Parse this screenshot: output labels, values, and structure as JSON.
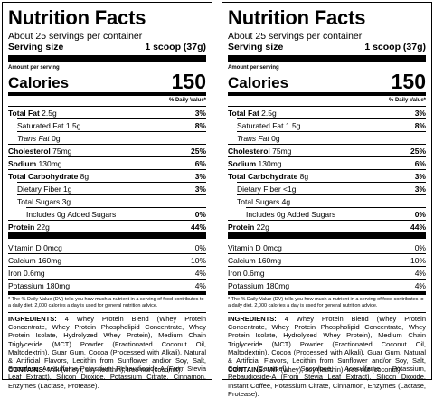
{
  "labels": [
    {
      "title": "Nutrition Facts",
      "servings": "About 25 servings per container",
      "serving_size_label": "Serving size",
      "serving_size_value": "1 scoop (37g)",
      "amount_per_serving": "Amount per serving",
      "calories_label": "Calories",
      "calories_value": "150",
      "dv_header": "% Daily Value*",
      "nutrients": [
        {
          "name": "Total Fat",
          "amount": "2.5g",
          "dv": "3%",
          "bold": true,
          "indent": 0
        },
        {
          "name": "Saturated Fat",
          "amount": "1.5g",
          "dv": "8%",
          "bold": false,
          "indent": 1
        },
        {
          "name": "Trans Fat",
          "amount": "0g",
          "dv": "",
          "bold": false,
          "indent": 1,
          "italic": true
        },
        {
          "name": "Cholesterol",
          "amount": "75mg",
          "dv": "25%",
          "bold": true,
          "indent": 0
        },
        {
          "name": "Sodium",
          "amount": "130mg",
          "dv": "6%",
          "bold": true,
          "indent": 0
        },
        {
          "name": "Total Carbohydrate",
          "amount": "8g",
          "dv": "3%",
          "bold": true,
          "indent": 0
        },
        {
          "name": "Dietary Fiber",
          "amount": "1g",
          "dv": "3%",
          "bold": false,
          "indent": 1
        },
        {
          "name": "Total Sugars",
          "amount": "3g",
          "dv": "",
          "bold": false,
          "indent": 1
        },
        {
          "name": "Includes 0g Added Sugars",
          "amount": "",
          "dv": "0%",
          "bold": false,
          "indent": 2
        },
        {
          "name": "Protein",
          "amount": "22g",
          "dv": "44%",
          "bold": true,
          "indent": 0
        }
      ],
      "vitamins": [
        {
          "name": "Vitamin D",
          "amount": "0mcg",
          "dv": "0%"
        },
        {
          "name": "Calcium",
          "amount": "160mg",
          "dv": "10%"
        },
        {
          "name": "Iron",
          "amount": "0.6mg",
          "dv": "4%"
        },
        {
          "name": "Potassium",
          "amount": "180mg",
          "dv": "4%"
        }
      ],
      "footnote": "* The % Daily Value (DV) tells you how much a nutrient in a serving of food contributes to a daily diet. 2,000 calories a day is used for general nutrition advice.",
      "ingredients_label": "INGREDIENTS:",
      "ingredients_text": "4 Whey Protein Blend (Whey Protein Concentrate, Whey Protein Phospholipid Concentrate, Whey Protein Isolate, Hydrolyzed Whey Protein), Medium Chain Triglyceride (MCT) Powder (Fractionated Coconut Oil, Maltodextrin), Guar Gum, Cocoa (Processed with Alkali), Natural & Artificial Flavors, Lecithin from Sunflower and/or Soy, Salt, Sucralose, Acesulfame Potassium, Rebaudioside-A (From Stevia Leaf Extract), Silicon Dioxide, Potassium Citrate, Cinnamon, Enzymes (Lactase, Protease).",
      "contains_label": "CONTAINS:",
      "contains_text": "Milk (whey), soy (lecithin), tree nut (coconut)."
    },
    {
      "title": "Nutrition Facts",
      "servings": "About 25 servings per container",
      "serving_size_label": "Serving size",
      "serving_size_value": "1 scoop (37g)",
      "amount_per_serving": "Amount per serving",
      "calories_label": "Calories",
      "calories_value": "150",
      "dv_header": "% Daily Value*",
      "nutrients": [
        {
          "name": "Total Fat",
          "amount": "2.5g",
          "dv": "3%",
          "bold": true,
          "indent": 0
        },
        {
          "name": "Saturated Fat",
          "amount": "1.5g",
          "dv": "8%",
          "bold": false,
          "indent": 1
        },
        {
          "name": "Trans Fat",
          "amount": "0g",
          "dv": "",
          "bold": false,
          "indent": 1,
          "italic": true
        },
        {
          "name": "Cholesterol",
          "amount": "75mg",
          "dv": "25%",
          "bold": true,
          "indent": 0
        },
        {
          "name": "Sodium",
          "amount": "130mg",
          "dv": "6%",
          "bold": true,
          "indent": 0
        },
        {
          "name": "Total Carbohydrate",
          "amount": "8g",
          "dv": "3%",
          "bold": true,
          "indent": 0
        },
        {
          "name": "Dietary Fiber",
          "amount": "<1g",
          "dv": "3%",
          "bold": false,
          "indent": 1
        },
        {
          "name": "Total Sugars",
          "amount": "4g",
          "dv": "",
          "bold": false,
          "indent": 1
        },
        {
          "name": "Includes 0g Added Sugars",
          "amount": "",
          "dv": "0%",
          "bold": false,
          "indent": 2
        },
        {
          "name": "Protein",
          "amount": "22g",
          "dv": "44%",
          "bold": true,
          "indent": 0
        }
      ],
      "vitamins": [
        {
          "name": "Vitamin D",
          "amount": "0mcg",
          "dv": "0%"
        },
        {
          "name": "Calcium",
          "amount": "160mg",
          "dv": "10%"
        },
        {
          "name": "Iron",
          "amount": "0.6mg",
          "dv": "4%"
        },
        {
          "name": "Potassium",
          "amount": "180mg",
          "dv": "4%"
        }
      ],
      "footnote": "* The % Daily Value (DV) tells you how much a nutrient in a serving of food contributes to a daily diet. 2,000 calories a day is used for general nutrition advice.",
      "ingredients_label": "INGREDIENTS:",
      "ingredients_text": "4 Whey Protein Blend (Whey Protein Concentrate, Whey Protein Phospholipid Concentrate, Whey Protein Isolate, Hydrolyzed Whey Protein), Medium Chain Triglyceride (MCT) Powder (Fractionated Coconut Oil, Maltodextrin), Cocoa (Processed with Alkali), Guar Gum, Natural & Artificial Flavors, Lecithin from Sunflower and/or Soy, Salt, Color (Caramel), Sucralose, Acesulfame Potassium, Rebaudioside-A (From Stevia Leaf Extract), Silicon Dioxide, Instant Coffee, Potassium Citrate, Cinnamon, Enzymes (Lactase, Protease).",
      "contains_label": "CONTAINS:",
      "contains_text": "Milk (whey), soy (lecithin), tree nut (coconut)."
    }
  ]
}
